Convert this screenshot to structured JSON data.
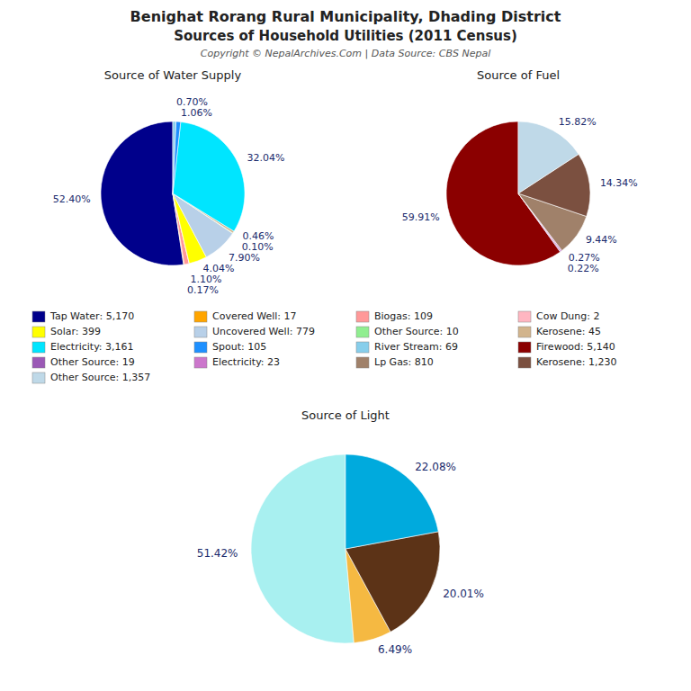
{
  "title": "Benighat Rorang Rural Municipality, Dhading District",
  "subtitle": "Sources of Household Utilities (2011 Census)",
  "annotations": [
    "Copyright © NepalArchives.Com | Data Source: CBS Nepal"
  ],
  "chart_data": [
    {
      "type": "pie",
      "title": "Source of Water Supply",
      "categories": [
        "Tap Water: 5,170",
        "Covered Well: 17",
        "Biogas: 109",
        "Cow Dung: 2",
        "Solar: 399",
        "Uncovered Well: 779",
        "Other Source: 10",
        "Kerosene: 45",
        "Electricity: 3,161",
        "Spout: 105",
        "River Stream: 69"
      ],
      "values": [
        52.4,
        0.17,
        1.1,
        0.02,
        4.04,
        7.9,
        0.1,
        0.46,
        32.04,
        1.06,
        0.7
      ],
      "value_labels": [
        "52.40%",
        "0.17%",
        "1.10%",
        null,
        "4.04%",
        "7.90%",
        "0.10%",
        "0.46%",
        "32.04%",
        "1.06%",
        "0.70%"
      ],
      "colors": [
        "#00008B",
        "#FFA500",
        "#FF9999",
        "#FFB6C1",
        "#FFFF00",
        "#B8D0E8",
        "#90EE90",
        "#D2B48C",
        "#00E5FF",
        "#1E90FF",
        "#87CEEB"
      ],
      "data_labels": true,
      "legend": "center"
    },
    {
      "type": "pie",
      "title": "Source of Fuel",
      "categories": [
        "Firewood: 5,140",
        "Other Source: 19",
        "Electricity: 23",
        "Lp Gas: 810",
        "Kerosene: 1,230",
        "Other Source: 1,357"
      ],
      "values": [
        59.91,
        0.22,
        0.27,
        9.44,
        14.34,
        15.82
      ],
      "value_labels": [
        "59.91%",
        "0.22%",
        "0.27%",
        "9.44%",
        "14.34%",
        "15.82%"
      ],
      "colors": [
        "#8B0000",
        "#9B59B6",
        "#CC77CC",
        "#A0816A",
        "#7B5040",
        "#BFD9E8"
      ],
      "data_labels": true,
      "legend": "center"
    },
    {
      "type": "pie",
      "title": "Source of Light",
      "values": [
        51.42,
        6.49,
        20.01,
        22.08
      ],
      "value_labels": [
        "51.42%",
        "6.49%",
        "20.01%",
        "22.08%"
      ],
      "colors": [
        "#A8F0F0",
        "#F5B942",
        "#5C3317",
        "#00AADD"
      ],
      "data_labels": true
    }
  ]
}
